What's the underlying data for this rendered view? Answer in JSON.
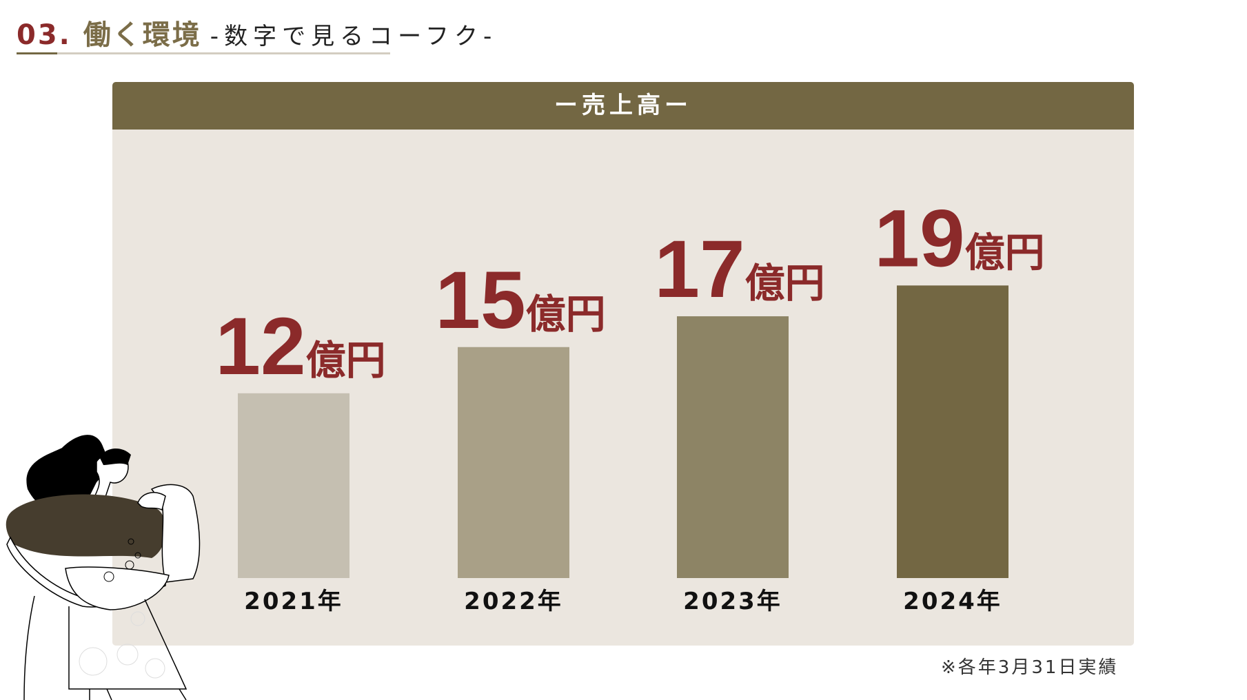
{
  "header": {
    "number": "03.",
    "title": "働く環境",
    "subtitle": "-数字で見るコーフク-"
  },
  "panel": {
    "title": "ー売上高ー"
  },
  "footnote": "※各年3月31日実績",
  "colors": {
    "accent_red": "#8b2a2a",
    "brand_brown": "#736743",
    "panel_bg": "#ebe6df"
  },
  "chart_data": {
    "type": "bar",
    "title": "ー売上高ー",
    "categories": [
      "2021年",
      "2022年",
      "2023年",
      "2024年"
    ],
    "values": [
      12,
      15,
      17,
      19
    ],
    "unit": "億円",
    "value_labels": [
      "12",
      "15",
      "17",
      "19"
    ],
    "bar_colors": [
      "#c5bfb1",
      "#a9a087",
      "#8d8465",
      "#736743"
    ],
    "ylim": [
      0,
      19
    ],
    "grid": false
  }
}
